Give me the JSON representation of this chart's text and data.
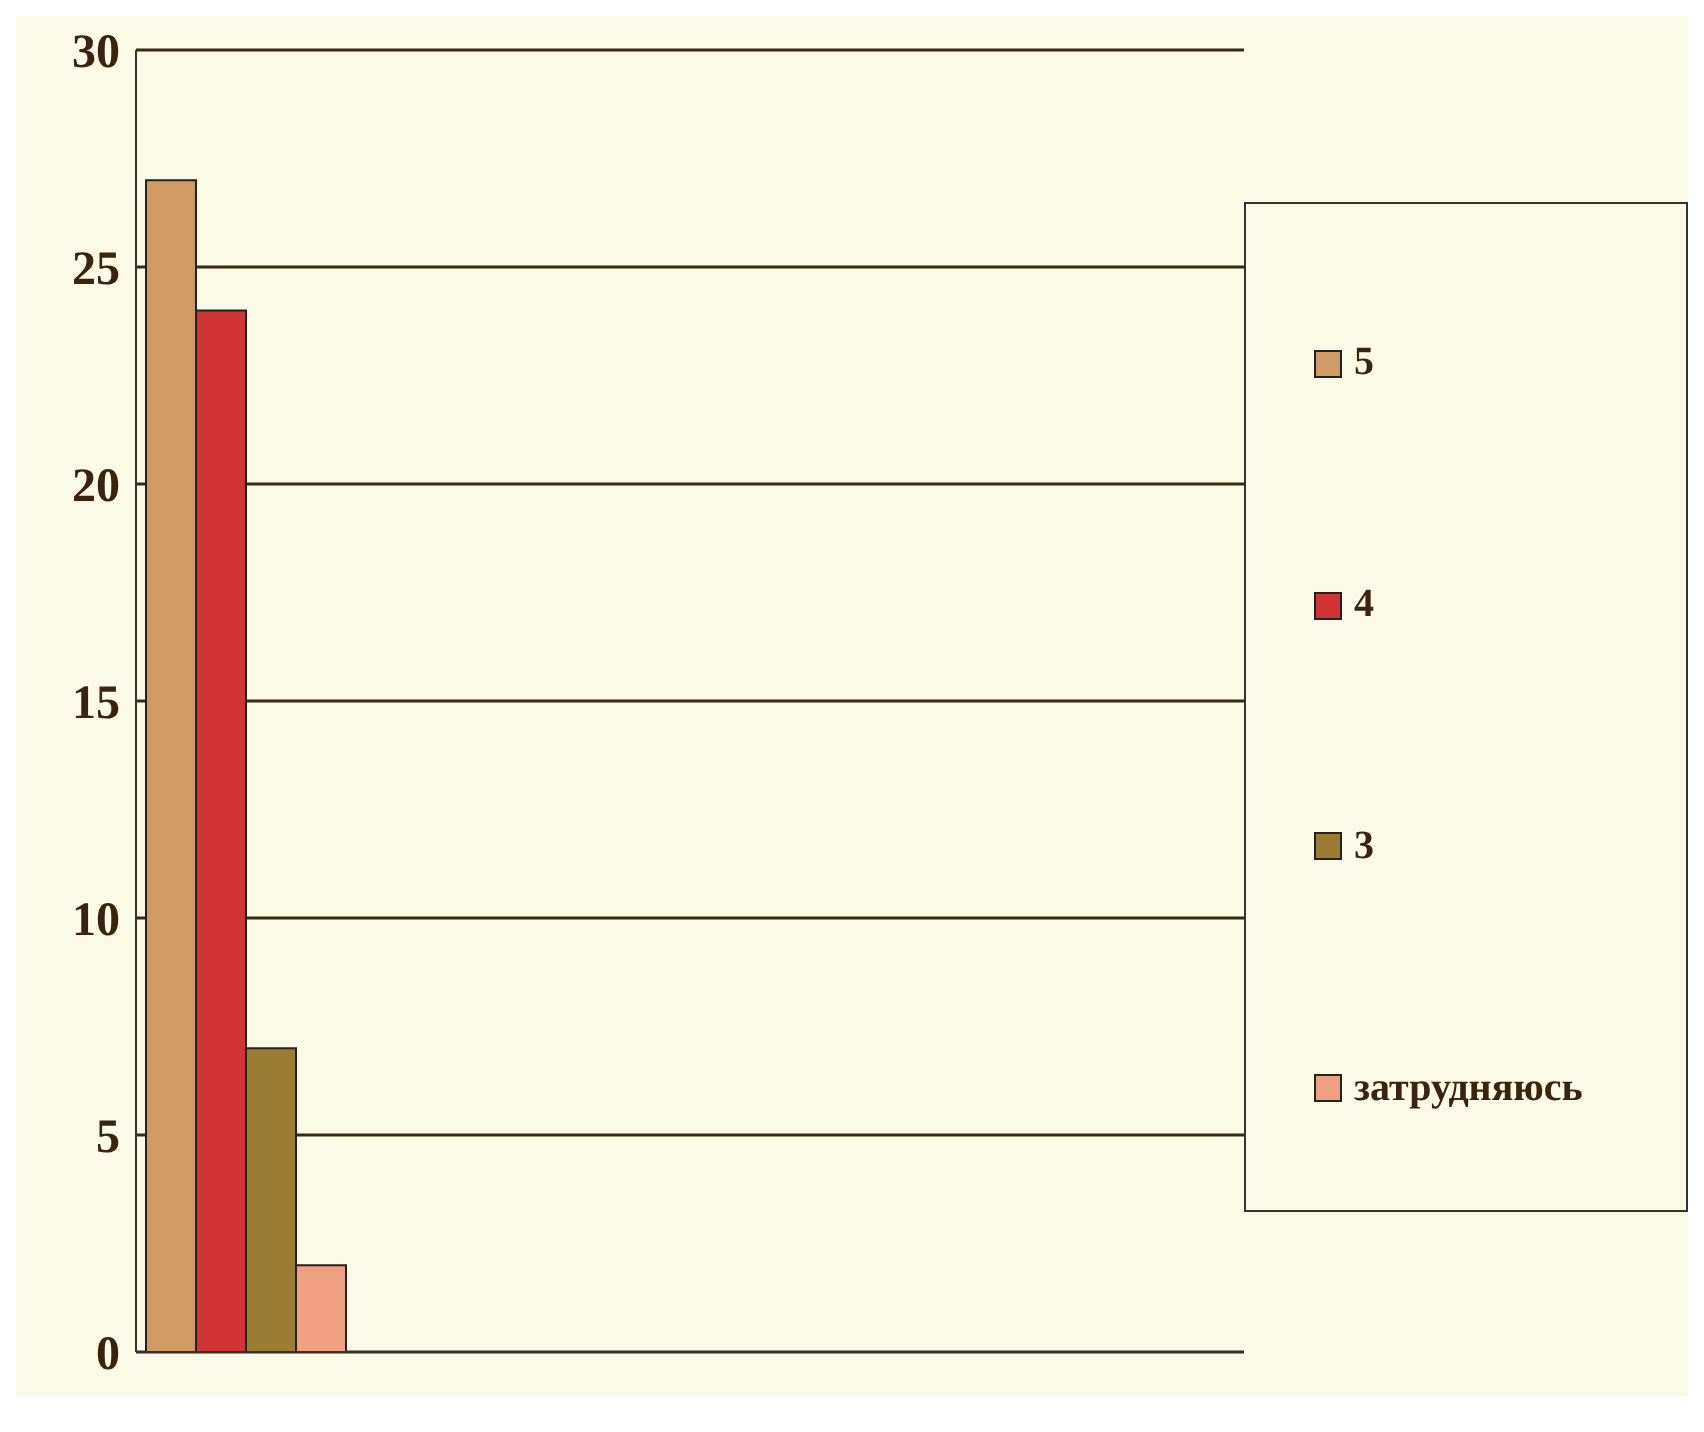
{
  "chart_data": {
    "type": "bar",
    "categories": [
      null,
      null,
      null,
      null,
      null
    ],
    "series": [
      {
        "name": "5",
        "color": "#d09a64",
        "values": [
          27,
          null,
          null,
          null,
          null
        ]
      },
      {
        "name": "4",
        "color": "#d03434",
        "values": [
          24,
          null,
          null,
          null,
          null
        ]
      },
      {
        "name": "3",
        "color": "#9a7c35",
        "values": [
          7,
          null,
          null,
          null,
          null
        ]
      },
      {
        "name": "затрудняюсь",
        "color": "#f0a080",
        "values": [
          2,
          null,
          null,
          null,
          null
        ]
      }
    ],
    "ylim": [
      0,
      30
    ],
    "yticks": [
      0,
      5,
      10,
      15,
      20,
      25,
      30
    ],
    "grid": "y",
    "legend": "right"
  }
}
